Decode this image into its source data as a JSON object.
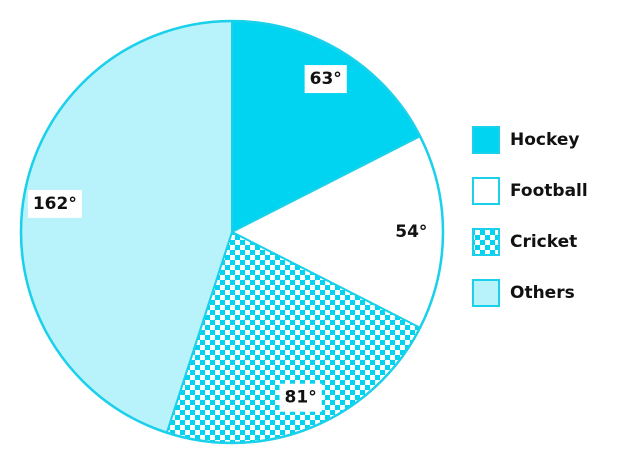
{
  "chart_data": {
    "type": "pie",
    "categories": [
      "Hockey",
      "Football",
      "Cricket",
      "Others"
    ],
    "values": [
      63,
      54,
      81,
      162
    ],
    "value_labels": [
      "63°",
      "54°",
      "81°",
      "162°"
    ],
    "colors": [
      "#00d4f0",
      "#ffffff",
      "#00d4f0",
      "#b8f2fb"
    ],
    "patterns": [
      "solid",
      "solid",
      "checker",
      "solid"
    ],
    "legend": "right"
  }
}
